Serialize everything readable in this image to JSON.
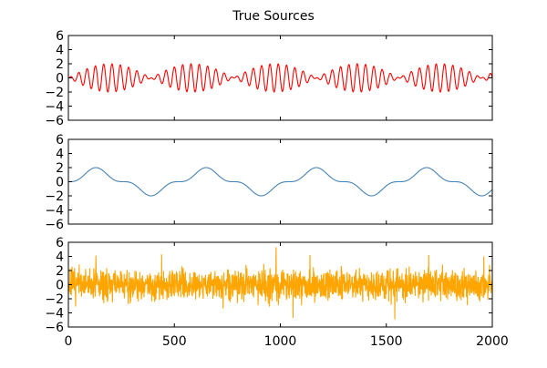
{
  "chart_data": {
    "type": "line",
    "title": "True Sources",
    "x_range": [
      0,
      2000
    ],
    "x_ticks": [
      0,
      500,
      1000,
      1500,
      2000
    ],
    "x_tick_labels": [
      "0",
      "500",
      "1000",
      "1500",
      "2000"
    ],
    "grid": false,
    "legend": "none",
    "panels": [
      {
        "series_color": "#ff0000",
        "description": "amplitude-modulated sinusoid (beating), envelope period about 390 samples, peak amplitude about 2",
        "model": {
          "kind": "am",
          "carrier_cycles_per_sample": 0.0255,
          "envelope_period": 390,
          "envelope_phase_x": 0,
          "amplitude": 2.0
        },
        "ylim": [
          -6,
          6
        ],
        "y_ticks": [
          6,
          4,
          2,
          0,
          -2,
          -4,
          -6
        ],
        "y_tick_labels": [
          "6",
          "4",
          "2",
          "0",
          "−2",
          "−4",
          "−6"
        ]
      },
      {
        "series_color": "#4682b4",
        "description": "smooth cubed sinusoid, period about 520 samples, amplitude about 2",
        "model": {
          "kind": "cubed_sine",
          "period": 520,
          "phase_x": 0,
          "amplitude": 2.0
        },
        "ylim": [
          -6,
          6
        ],
        "y_ticks": [
          6,
          4,
          2,
          0,
          -2,
          -4,
          -6
        ],
        "y_tick_labels": [
          "6",
          "4",
          "2",
          "0",
          "−2",
          "−4",
          "−6"
        ]
      },
      {
        "series_color": "#ffa500",
        "description": "heavy-tailed random noise around 0, mostly within ±3, occasional spikes up to about 5.3 and down to about −4.8",
        "model": {
          "kind": "noise",
          "std": 1.1,
          "seed": 7,
          "spikes": [
            [
              130,
              4.1
            ],
            [
              440,
              4.3
            ],
            [
              980,
              5.3
            ],
            [
              1060,
              -4.7
            ],
            [
              1140,
              4.2
            ],
            [
              1540,
              -4.9
            ],
            [
              1700,
              4.2
            ],
            [
              1960,
              4.0
            ]
          ]
        },
        "ylim": [
          -6,
          6
        ],
        "y_ticks": [
          6,
          4,
          2,
          0,
          -2,
          -4,
          -6
        ],
        "y_tick_labels": [
          "6",
          "4",
          "2",
          "0",
          "−2",
          "−4",
          "−6"
        ]
      }
    ]
  }
}
